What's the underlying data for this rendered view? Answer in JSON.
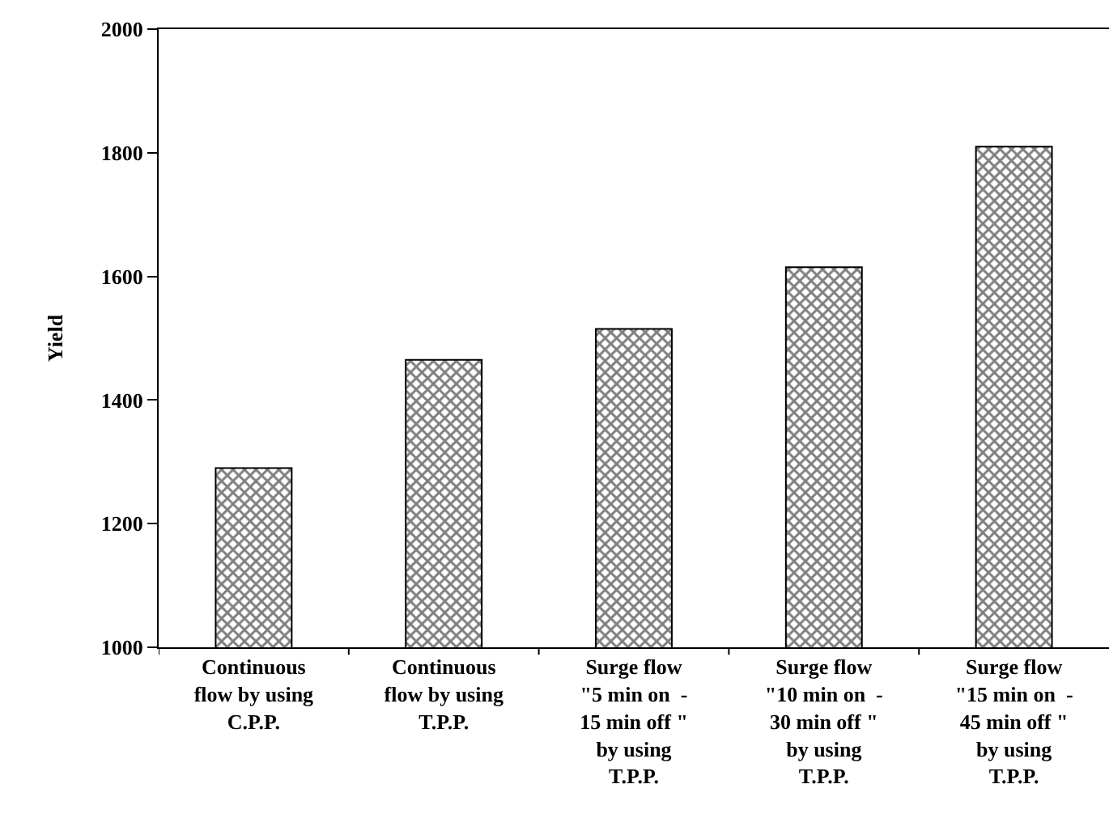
{
  "chart_data": {
    "type": "bar",
    "ylabel": "Yield",
    "categories": [
      "Continuous\nflow by using\nC.P.P.",
      "Continuous\nflow by using\nT.P.P.",
      "Surge flow\n\"5 min on  -\n15 min off \"\nby using\nT.P.P.",
      "Surge flow\n\"10 min on  -\n30 min off \"\nby using\nT.P.P.",
      "Surge flow\n\"15 min on  -\n45 min off \"\nby using\nT.P.P."
    ],
    "values": [
      1290,
      1465,
      1515,
      1615,
      1810
    ],
    "color": "#000000",
    "ylim": [
      1000,
      2000
    ],
    "yticks": [
      1000,
      1200,
      1400,
      1600,
      1800,
      2000
    ]
  }
}
